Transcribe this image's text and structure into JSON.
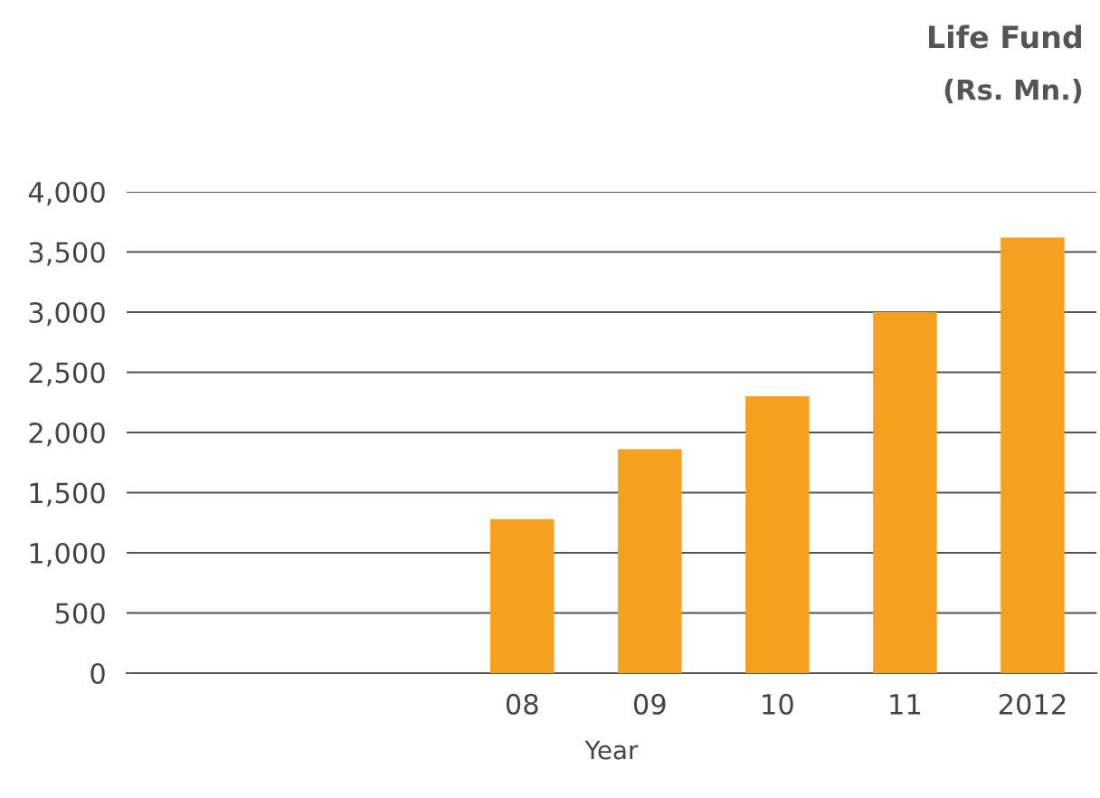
{
  "chart_data": {
    "type": "bar",
    "title": "Life Fund",
    "subtitle": "(Rs. Mn.)",
    "xlabel": "Year",
    "categories": [
      null,
      null,
      null,
      "08",
      "09",
      "10",
      "11",
      "2012"
    ],
    "values": [
      null,
      null,
      null,
      1280,
      1860,
      2300,
      3000,
      3620
    ],
    "color": "#f5a01f",
    "ylim": [
      0,
      4000
    ],
    "yticks": [
      {
        "value": 0,
        "label": "0"
      },
      {
        "value": 500,
        "label": "500"
      },
      {
        "value": 1000,
        "label": "1,000"
      },
      {
        "value": 1500,
        "label": "1,500"
      },
      {
        "value": 2000,
        "label": "2,000"
      },
      {
        "value": 2500,
        "label": "2,500"
      },
      {
        "value": 3000,
        "label": "3,000"
      },
      {
        "value": 3500,
        "label": "3,500"
      },
      {
        "value": 4000,
        "label": "4,000"
      }
    ],
    "grid": "y"
  }
}
